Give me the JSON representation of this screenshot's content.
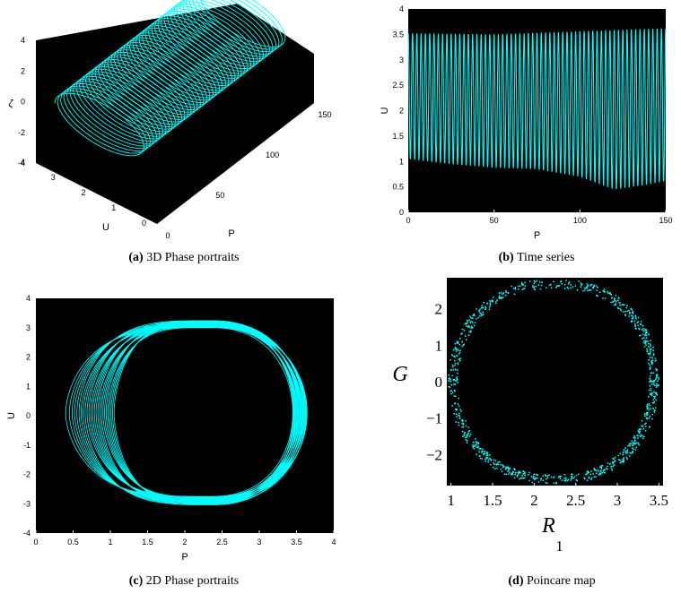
{
  "figure": {
    "captions": [
      {
        "label": "(a)",
        "text": " 3D Phase portraits"
      },
      {
        "label": "(b)",
        "text": " Time series"
      },
      {
        "label": "(c)",
        "text": " 2D Phase portraits"
      },
      {
        "label": "(d)",
        "text": " Poincare map"
      }
    ]
  },
  "chart_data": [
    {
      "type": "line3d",
      "title": "",
      "xlabel": "P",
      "ylabel": "U",
      "zlabel": "ζ",
      "xlim": [
        0,
        150
      ],
      "ylim": [
        0,
        4
      ],
      "zlim": [
        -4,
        4
      ],
      "xticks": [
        "0",
        "50",
        "100",
        "150"
      ],
      "yticks": [
        "0",
        "1",
        "2",
        "3",
        "4"
      ],
      "zticks": [
        "-4",
        "-2",
        "0",
        "2",
        "4"
      ],
      "background": "#000000",
      "line_color": "#00ffff"
    },
    {
      "type": "line",
      "title": "",
      "xlabel": "P",
      "ylabel": "U",
      "xlim": [
        0,
        150
      ],
      "ylim": [
        0,
        4
      ],
      "xticks": [
        "0",
        "50",
        "100",
        "150"
      ],
      "yticks": [
        "0",
        "0.5",
        "1",
        "1.5",
        "2",
        "2.5",
        "3",
        "3.5",
        "4"
      ],
      "cycles": 60,
      "upper_envelope": {
        "x": [
          0,
          50,
          100,
          150
        ],
        "y": [
          3.52,
          3.5,
          3.56,
          3.62
        ]
      },
      "lower_envelope": {
        "x": [
          0,
          25,
          50,
          75,
          100,
          120,
          140,
          150
        ],
        "y": [
          1.05,
          0.95,
          0.88,
          0.85,
          0.7,
          0.45,
          0.55,
          0.62
        ]
      },
      "background": "#000000",
      "line_color": "#00ffff"
    },
    {
      "type": "line",
      "title": "",
      "xlabel": "P",
      "ylabel": "U",
      "xlim": [
        0,
        4
      ],
      "ylim": [
        -4,
        4
      ],
      "xticks": [
        "0",
        "0.5",
        "1",
        "1.5",
        "2",
        "2.5",
        "3",
        "3.5",
        "4"
      ],
      "yticks": [
        "-4",
        "-3",
        "-2",
        "-1",
        "0",
        "1",
        "2",
        "3",
        "4"
      ],
      "center": [
        2.35,
        0.1
      ],
      "left_extent_range": [
        0.4,
        1.05
      ],
      "right_extent_range": [
        3.45,
        3.65
      ],
      "top_range": [
        3.0,
        3.25
      ],
      "bottom_range": [
        -2.75,
        -3.05
      ],
      "background": "#000000",
      "line_color": "#00ffff"
    },
    {
      "type": "scatter",
      "title": "",
      "xlabel": "R",
      "xlabel_sub": "1",
      "ylabel": "G",
      "xlim": [
        0.95,
        3.55
      ],
      "ylim": [
        -2.85,
        2.85
      ],
      "xticks": [
        "1",
        "1.5",
        "2",
        "2.5",
        "3",
        "3.5"
      ],
      "yticks": [
        "-2",
        "-1",
        "0",
        "1",
        "2"
      ],
      "center": [
        2.25,
        0.0
      ],
      "x_extent": [
        0.97,
        3.5
      ],
      "y_extent": [
        -2.8,
        2.8
      ],
      "background": "#000000",
      "marker_color": "#00ffff"
    }
  ]
}
